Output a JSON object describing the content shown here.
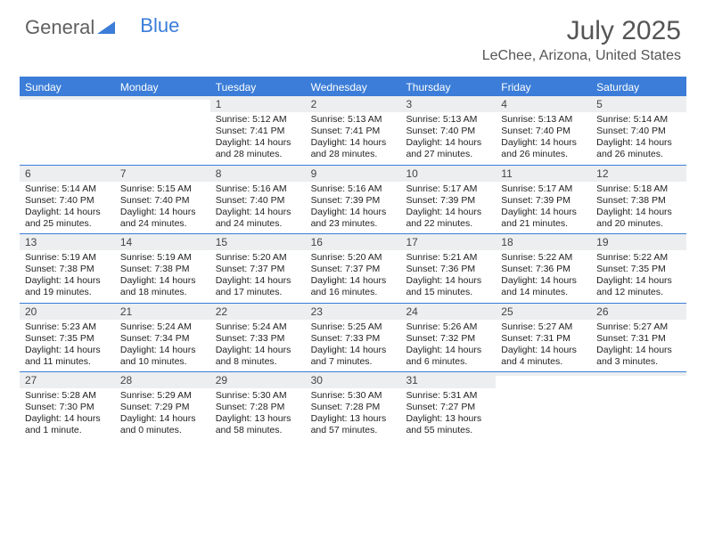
{
  "brand": {
    "part1": "General",
    "part2": "Blue"
  },
  "title": "July 2025",
  "location": "LeChee, Arizona, United States",
  "colors": {
    "accent": "#3b7dd8",
    "header_bg": "#3b7dd8",
    "header_text": "#ffffff",
    "daynum_bg": "#eceef0",
    "text": "#222222",
    "title_text": "#555555"
  },
  "day_headers": [
    "Sunday",
    "Monday",
    "Tuesday",
    "Wednesday",
    "Thursday",
    "Friday",
    "Saturday"
  ],
  "weeks": [
    [
      {
        "num": "",
        "sunrise": "",
        "sunset": "",
        "daylight": ""
      },
      {
        "num": "",
        "sunrise": "",
        "sunset": "",
        "daylight": ""
      },
      {
        "num": "1",
        "sunrise": "Sunrise: 5:12 AM",
        "sunset": "Sunset: 7:41 PM",
        "daylight": "Daylight: 14 hours and 28 minutes."
      },
      {
        "num": "2",
        "sunrise": "Sunrise: 5:13 AM",
        "sunset": "Sunset: 7:41 PM",
        "daylight": "Daylight: 14 hours and 28 minutes."
      },
      {
        "num": "3",
        "sunrise": "Sunrise: 5:13 AM",
        "sunset": "Sunset: 7:40 PM",
        "daylight": "Daylight: 14 hours and 27 minutes."
      },
      {
        "num": "4",
        "sunrise": "Sunrise: 5:13 AM",
        "sunset": "Sunset: 7:40 PM",
        "daylight": "Daylight: 14 hours and 26 minutes."
      },
      {
        "num": "5",
        "sunrise": "Sunrise: 5:14 AM",
        "sunset": "Sunset: 7:40 PM",
        "daylight": "Daylight: 14 hours and 26 minutes."
      }
    ],
    [
      {
        "num": "6",
        "sunrise": "Sunrise: 5:14 AM",
        "sunset": "Sunset: 7:40 PM",
        "daylight": "Daylight: 14 hours and 25 minutes."
      },
      {
        "num": "7",
        "sunrise": "Sunrise: 5:15 AM",
        "sunset": "Sunset: 7:40 PM",
        "daylight": "Daylight: 14 hours and 24 minutes."
      },
      {
        "num": "8",
        "sunrise": "Sunrise: 5:16 AM",
        "sunset": "Sunset: 7:40 PM",
        "daylight": "Daylight: 14 hours and 24 minutes."
      },
      {
        "num": "9",
        "sunrise": "Sunrise: 5:16 AM",
        "sunset": "Sunset: 7:39 PM",
        "daylight": "Daylight: 14 hours and 23 minutes."
      },
      {
        "num": "10",
        "sunrise": "Sunrise: 5:17 AM",
        "sunset": "Sunset: 7:39 PM",
        "daylight": "Daylight: 14 hours and 22 minutes."
      },
      {
        "num": "11",
        "sunrise": "Sunrise: 5:17 AM",
        "sunset": "Sunset: 7:39 PM",
        "daylight": "Daylight: 14 hours and 21 minutes."
      },
      {
        "num": "12",
        "sunrise": "Sunrise: 5:18 AM",
        "sunset": "Sunset: 7:38 PM",
        "daylight": "Daylight: 14 hours and 20 minutes."
      }
    ],
    [
      {
        "num": "13",
        "sunrise": "Sunrise: 5:19 AM",
        "sunset": "Sunset: 7:38 PM",
        "daylight": "Daylight: 14 hours and 19 minutes."
      },
      {
        "num": "14",
        "sunrise": "Sunrise: 5:19 AM",
        "sunset": "Sunset: 7:38 PM",
        "daylight": "Daylight: 14 hours and 18 minutes."
      },
      {
        "num": "15",
        "sunrise": "Sunrise: 5:20 AM",
        "sunset": "Sunset: 7:37 PM",
        "daylight": "Daylight: 14 hours and 17 minutes."
      },
      {
        "num": "16",
        "sunrise": "Sunrise: 5:20 AM",
        "sunset": "Sunset: 7:37 PM",
        "daylight": "Daylight: 14 hours and 16 minutes."
      },
      {
        "num": "17",
        "sunrise": "Sunrise: 5:21 AM",
        "sunset": "Sunset: 7:36 PM",
        "daylight": "Daylight: 14 hours and 15 minutes."
      },
      {
        "num": "18",
        "sunrise": "Sunrise: 5:22 AM",
        "sunset": "Sunset: 7:36 PM",
        "daylight": "Daylight: 14 hours and 14 minutes."
      },
      {
        "num": "19",
        "sunrise": "Sunrise: 5:22 AM",
        "sunset": "Sunset: 7:35 PM",
        "daylight": "Daylight: 14 hours and 12 minutes."
      }
    ],
    [
      {
        "num": "20",
        "sunrise": "Sunrise: 5:23 AM",
        "sunset": "Sunset: 7:35 PM",
        "daylight": "Daylight: 14 hours and 11 minutes."
      },
      {
        "num": "21",
        "sunrise": "Sunrise: 5:24 AM",
        "sunset": "Sunset: 7:34 PM",
        "daylight": "Daylight: 14 hours and 10 minutes."
      },
      {
        "num": "22",
        "sunrise": "Sunrise: 5:24 AM",
        "sunset": "Sunset: 7:33 PM",
        "daylight": "Daylight: 14 hours and 8 minutes."
      },
      {
        "num": "23",
        "sunrise": "Sunrise: 5:25 AM",
        "sunset": "Sunset: 7:33 PM",
        "daylight": "Daylight: 14 hours and 7 minutes."
      },
      {
        "num": "24",
        "sunrise": "Sunrise: 5:26 AM",
        "sunset": "Sunset: 7:32 PM",
        "daylight": "Daylight: 14 hours and 6 minutes."
      },
      {
        "num": "25",
        "sunrise": "Sunrise: 5:27 AM",
        "sunset": "Sunset: 7:31 PM",
        "daylight": "Daylight: 14 hours and 4 minutes."
      },
      {
        "num": "26",
        "sunrise": "Sunrise: 5:27 AM",
        "sunset": "Sunset: 7:31 PM",
        "daylight": "Daylight: 14 hours and 3 minutes."
      }
    ],
    [
      {
        "num": "27",
        "sunrise": "Sunrise: 5:28 AM",
        "sunset": "Sunset: 7:30 PM",
        "daylight": "Daylight: 14 hours and 1 minute."
      },
      {
        "num": "28",
        "sunrise": "Sunrise: 5:29 AM",
        "sunset": "Sunset: 7:29 PM",
        "daylight": "Daylight: 14 hours and 0 minutes."
      },
      {
        "num": "29",
        "sunrise": "Sunrise: 5:30 AM",
        "sunset": "Sunset: 7:28 PM",
        "daylight": "Daylight: 13 hours and 58 minutes."
      },
      {
        "num": "30",
        "sunrise": "Sunrise: 5:30 AM",
        "sunset": "Sunset: 7:28 PM",
        "daylight": "Daylight: 13 hours and 57 minutes."
      },
      {
        "num": "31",
        "sunrise": "Sunrise: 5:31 AM",
        "sunset": "Sunset: 7:27 PM",
        "daylight": "Daylight: 13 hours and 55 minutes."
      },
      {
        "num": "",
        "sunrise": "",
        "sunset": "",
        "daylight": ""
      },
      {
        "num": "",
        "sunrise": "",
        "sunset": "",
        "daylight": ""
      }
    ]
  ]
}
